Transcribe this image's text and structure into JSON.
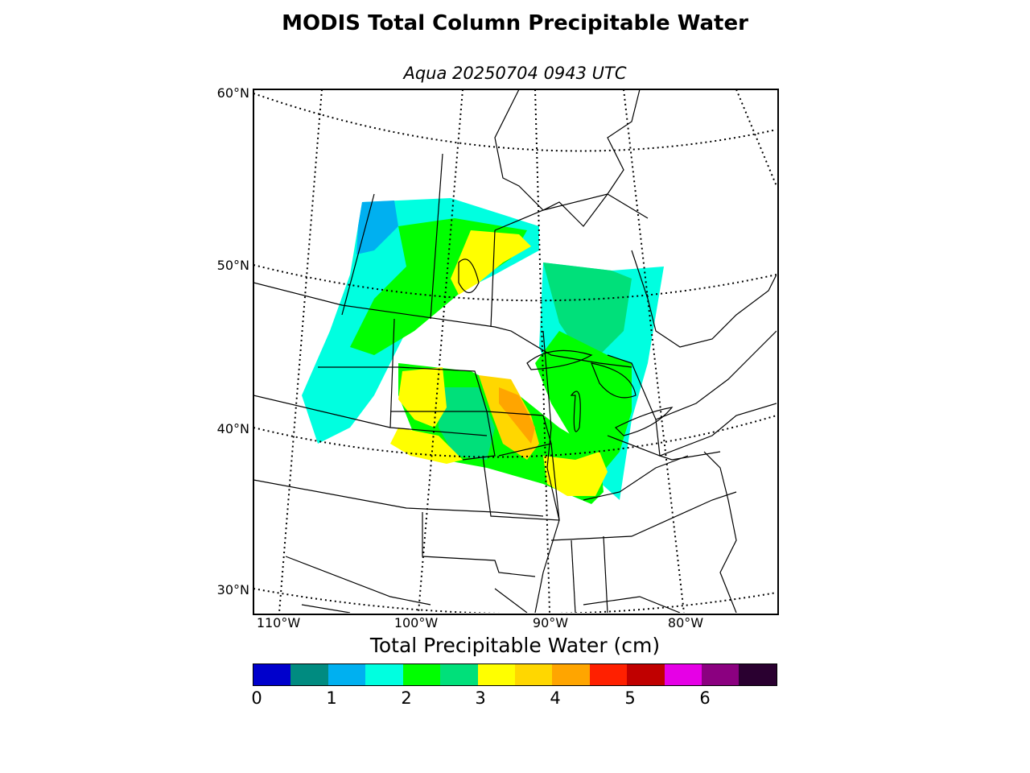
{
  "figure": {
    "title": "MODIS Total Column Precipitable Water",
    "subtitle": "Aqua 20250704 0943 UTC"
  },
  "map": {
    "region": "Central North America (Lambert conformal)",
    "lat_labels": [
      "60°N",
      "50°N",
      "40°N",
      "30°N"
    ],
    "lon_labels": [
      "110°W",
      "100°W",
      "90°W",
      "80°W"
    ],
    "coastline_color": "#000000",
    "graticule_style": "dotted"
  },
  "colorbar": {
    "title": "Total Precipitable Water (cm)",
    "tick_labels": [
      "0",
      "1",
      "2",
      "3",
      "4",
      "5",
      "6"
    ],
    "colors": [
      "#0000cc",
      "#008b80",
      "#00b0f0",
      "#00ffe0",
      "#00ff00",
      "#00e07a",
      "#ffff00",
      "#ffd700",
      "#ffa500",
      "#ff2000",
      "#c00000",
      "#e600e6",
      "#8b0080",
      "#2a0030"
    ]
  }
}
